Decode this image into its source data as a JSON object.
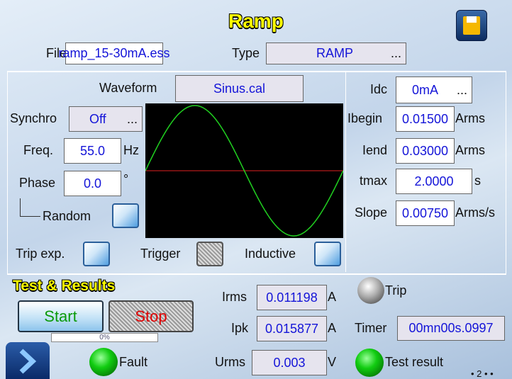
{
  "header": {
    "title": "Ramp"
  },
  "file": {
    "label": "File",
    "value": "ramp_15-30mA.ess"
  },
  "type": {
    "label": "Type",
    "value": "RAMP",
    "more": "..."
  },
  "waveform": {
    "label": "Waveform",
    "value": "Sinus.cal"
  },
  "synchro": {
    "label": "Synchro",
    "value": "Off",
    "more": "..."
  },
  "freq": {
    "label": "Freq.",
    "value": "55.0",
    "unit": "Hz"
  },
  "phase": {
    "label": "Phase",
    "value": "0.0",
    "unit": "°"
  },
  "random": {
    "label": "Random"
  },
  "idc": {
    "label": "Idc",
    "value": "0mA",
    "more": "..."
  },
  "ibegin": {
    "label": "Ibegin",
    "value": "0.01500",
    "unit": "Arms"
  },
  "iend": {
    "label": "Iend",
    "value": "0.03000",
    "unit": "Arms"
  },
  "tmax": {
    "label": "tmax",
    "value": "2.0000",
    "unit": "s"
  },
  "slope": {
    "label": "Slope",
    "value": "0.00750",
    "unit": "Arms/s"
  },
  "options": {
    "trip_exp": "Trip exp.",
    "trigger": "Trigger",
    "inductive": "Inductive"
  },
  "results": {
    "title": "Test & Results",
    "start": "Start",
    "stop": "Stop",
    "progress": "0%",
    "irms": {
      "label": "Irms",
      "value": "0.011198",
      "unit": "A"
    },
    "ipk": {
      "label": "Ipk",
      "value": "0.015877",
      "unit": "A"
    },
    "urms": {
      "label": "Urms",
      "value": "0.003",
      "unit": "V"
    },
    "trip": "Trip",
    "timer": {
      "label": "Timer",
      "value": "00mn00s.0997"
    },
    "fault": "Fault",
    "test_result": "Test result"
  },
  "page": "2"
}
